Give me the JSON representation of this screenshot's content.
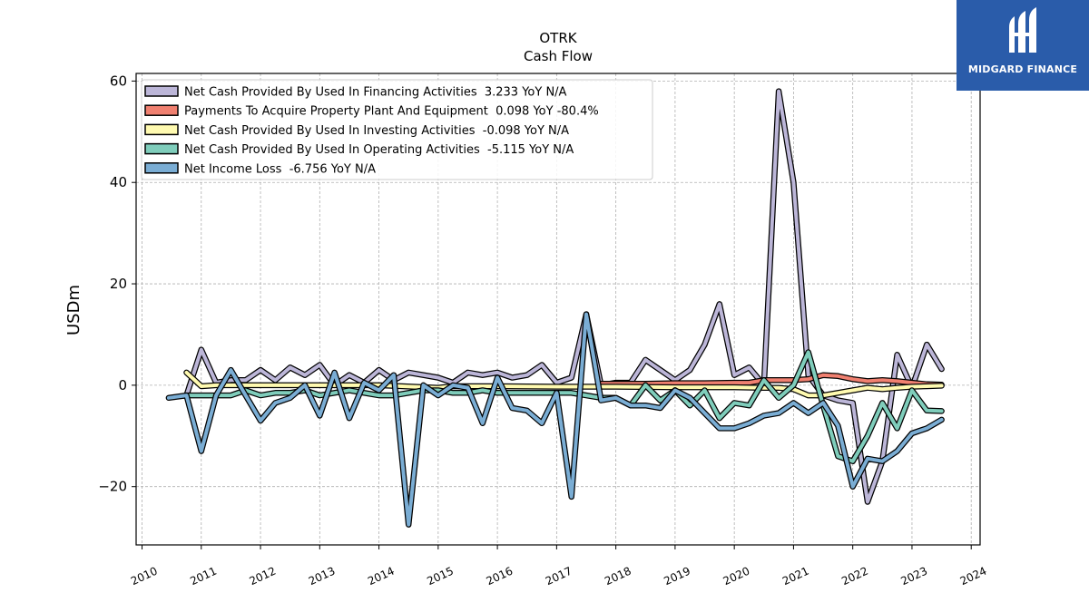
{
  "brand": {
    "name": "MIDGARD FINANCE",
    "color": "#2a5caa"
  },
  "chart_data": {
    "type": "line",
    "title": "OTRK",
    "subtitle": "Cash Flow",
    "xlabel": "",
    "ylabel": "USDm",
    "xlim": [
      2009.9,
      2024.15
    ],
    "ylim": [
      -31.5,
      61.5
    ],
    "x_ticks": [
      "2010",
      "2011",
      "2012",
      "2013",
      "2014",
      "2015",
      "2016",
      "2017",
      "2018",
      "2019",
      "2020",
      "2021",
      "2022",
      "2023",
      "2024"
    ],
    "y_ticks": [
      -20,
      0,
      20,
      40,
      60
    ],
    "grid": true,
    "legend_position": "top-left",
    "series": [
      {
        "name": "Net Cash Provided By Used In Financing Activities  3.233 YoY N/A",
        "color": "#bcb6d8",
        "points": [
          [
            2010.75,
            -2
          ],
          [
            2011.0,
            7
          ],
          [
            2011.25,
            0.5
          ],
          [
            2011.5,
            1
          ],
          [
            2011.75,
            1
          ],
          [
            2012.0,
            3
          ],
          [
            2012.25,
            1
          ],
          [
            2012.5,
            3.5
          ],
          [
            2012.75,
            2
          ],
          [
            2013.0,
            4
          ],
          [
            2013.25,
            0
          ],
          [
            2013.5,
            2
          ],
          [
            2013.75,
            0.5
          ],
          [
            2014.0,
            3
          ],
          [
            2014.25,
            1
          ],
          [
            2014.5,
            2.5
          ],
          [
            2014.75,
            2
          ],
          [
            2015.0,
            1.5
          ],
          [
            2015.25,
            0.5
          ],
          [
            2015.5,
            2.5
          ],
          [
            2015.75,
            2
          ],
          [
            2016.0,
            2.5
          ],
          [
            2016.25,
            1.5
          ],
          [
            2016.5,
            2
          ],
          [
            2016.75,
            4
          ],
          [
            2017.0,
            0.5
          ],
          [
            2017.25,
            1.5
          ],
          [
            2017.5,
            14
          ],
          [
            2017.75,
            0
          ],
          [
            2018.0,
            0.5
          ],
          [
            2018.25,
            0.5
          ],
          [
            2018.5,
            5
          ],
          [
            2018.75,
            3
          ],
          [
            2019.0,
            1
          ],
          [
            2019.25,
            3
          ],
          [
            2019.5,
            8
          ],
          [
            2019.75,
            16
          ],
          [
            2020.0,
            2
          ],
          [
            2020.25,
            3.5
          ],
          [
            2020.5,
            0
          ],
          [
            2020.75,
            58
          ],
          [
            2021.0,
            40
          ],
          [
            2021.25,
            2
          ],
          [
            2021.5,
            -2
          ],
          [
            2021.75,
            -3
          ],
          [
            2022.0,
            -3.5
          ],
          [
            2022.25,
            -23
          ],
          [
            2022.5,
            -15
          ],
          [
            2022.75,
            6
          ],
          [
            2023.0,
            -0.5
          ],
          [
            2023.25,
            8
          ],
          [
            2023.5,
            3.2
          ]
        ]
      },
      {
        "name": "Payments To Acquire Property Plant And Equipment  0.098 YoY -80.4%",
        "color": "#f08070",
        "points": [
          [
            2017.75,
            0.3
          ],
          [
            2018.0,
            0.3
          ],
          [
            2018.5,
            0.3
          ],
          [
            2019.0,
            0.4
          ],
          [
            2019.5,
            0.4
          ],
          [
            2020.0,
            0.5
          ],
          [
            2020.25,
            0.5
          ],
          [
            2020.5,
            1
          ],
          [
            2020.75,
            1
          ],
          [
            2021.0,
            1
          ],
          [
            2021.25,
            1.2
          ],
          [
            2021.5,
            2
          ],
          [
            2021.75,
            1.8
          ],
          [
            2022.0,
            1.2
          ],
          [
            2022.25,
            0.8
          ],
          [
            2022.5,
            1
          ],
          [
            2022.75,
            0.8
          ],
          [
            2023.0,
            0.5
          ],
          [
            2023.25,
            0.2
          ],
          [
            2023.5,
            0.1
          ]
        ]
      },
      {
        "name": "Net Cash Provided By Used In Investing Activities  -0.098 YoY N/A",
        "color": "#fffab0",
        "points": [
          [
            2010.75,
            2.5
          ],
          [
            2011.0,
            -0.2
          ],
          [
            2011.25,
            0
          ],
          [
            2011.5,
            0
          ],
          [
            2011.75,
            0
          ],
          [
            2012.0,
            0
          ],
          [
            2013.0,
            0
          ],
          [
            2014.0,
            0
          ],
          [
            2015.0,
            -0.5
          ],
          [
            2015.25,
            -0.2
          ],
          [
            2016.0,
            -0.2
          ],
          [
            2017.0,
            -0.3
          ],
          [
            2017.5,
            -0.3
          ],
          [
            2018.0,
            -0.3
          ],
          [
            2019.0,
            -0.4
          ],
          [
            2019.5,
            -0.4
          ],
          [
            2020.0,
            -0.4
          ],
          [
            2020.5,
            -0.5
          ],
          [
            2020.75,
            -0.5
          ],
          [
            2021.0,
            -0.8
          ],
          [
            2021.25,
            -2
          ],
          [
            2021.5,
            -2
          ],
          [
            2021.75,
            -1.5
          ],
          [
            2022.0,
            -1
          ],
          [
            2022.25,
            -0.5
          ],
          [
            2022.5,
            -0.8
          ],
          [
            2022.75,
            -0.5
          ],
          [
            2023.0,
            -0.3
          ],
          [
            2023.25,
            -0.2
          ],
          [
            2023.5,
            -0.1
          ]
        ]
      },
      {
        "name": "Net Cash Provided By Used In Operating Activities  -5.115 YoY N/A",
        "color": "#7fcdbb",
        "points": [
          [
            2010.75,
            -2
          ],
          [
            2011.0,
            -2
          ],
          [
            2011.25,
            -2
          ],
          [
            2011.5,
            -2
          ],
          [
            2011.75,
            -1
          ],
          [
            2012.0,
            -2
          ],
          [
            2012.25,
            -1.5
          ],
          [
            2012.5,
            -1.5
          ],
          [
            2012.75,
            -1
          ],
          [
            2013.0,
            -2
          ],
          [
            2013.25,
            -1.5
          ],
          [
            2013.5,
            -1
          ],
          [
            2013.75,
            -1.5
          ],
          [
            2014.0,
            -2
          ],
          [
            2014.25,
            -2
          ],
          [
            2014.5,
            -1.5
          ],
          [
            2014.75,
            -1
          ],
          [
            2015.0,
            -1
          ],
          [
            2015.25,
            -1.5
          ],
          [
            2015.5,
            -1.5
          ],
          [
            2015.75,
            -1
          ],
          [
            2016.0,
            -1.5
          ],
          [
            2016.25,
            -1.5
          ],
          [
            2016.5,
            -1.5
          ],
          [
            2016.75,
            -1.5
          ],
          [
            2017.0,
            -1.5
          ],
          [
            2017.25,
            -1.5
          ],
          [
            2017.5,
            -2
          ],
          [
            2017.75,
            -2.5
          ],
          [
            2018.0,
            -2.5
          ],
          [
            2018.25,
            -4
          ],
          [
            2018.5,
            0
          ],
          [
            2018.75,
            -3
          ],
          [
            2019.0,
            -1
          ],
          [
            2019.25,
            -4
          ],
          [
            2019.5,
            -1
          ],
          [
            2019.75,
            -6.5
          ],
          [
            2020.0,
            -3.5
          ],
          [
            2020.25,
            -4
          ],
          [
            2020.5,
            1
          ],
          [
            2020.75,
            -2.5
          ],
          [
            2021.0,
            0
          ],
          [
            2021.25,
            6.5
          ],
          [
            2021.5,
            -4
          ],
          [
            2021.75,
            -14
          ],
          [
            2022.0,
            -15
          ],
          [
            2022.25,
            -10
          ],
          [
            2022.5,
            -3.5
          ],
          [
            2022.75,
            -8.5
          ],
          [
            2023.0,
            -1
          ],
          [
            2023.25,
            -5
          ],
          [
            2023.5,
            -5.1
          ]
        ]
      },
      {
        "name": "Net Income Loss  -6.756 YoY N/A",
        "color": "#7aadd4",
        "points": [
          [
            2010.45,
            -2.5
          ],
          [
            2010.75,
            -2
          ],
          [
            2011.0,
            -13
          ],
          [
            2011.25,
            -2
          ],
          [
            2011.5,
            3
          ],
          [
            2011.75,
            -2
          ],
          [
            2012.0,
            -7
          ],
          [
            2012.25,
            -3.5
          ],
          [
            2012.5,
            -2.5
          ],
          [
            2012.75,
            0
          ],
          [
            2013.0,
            -6
          ],
          [
            2013.25,
            2.5
          ],
          [
            2013.5,
            -6.5
          ],
          [
            2013.75,
            0.5
          ],
          [
            2014.0,
            -1
          ],
          [
            2014.25,
            2
          ],
          [
            2014.5,
            -27.5
          ],
          [
            2014.75,
            0
          ],
          [
            2015.0,
            -2
          ],
          [
            2015.25,
            0
          ],
          [
            2015.5,
            -0.5
          ],
          [
            2015.75,
            -7.5
          ],
          [
            2016.0,
            1.5
          ],
          [
            2016.25,
            -4.5
          ],
          [
            2016.5,
            -5
          ],
          [
            2016.75,
            -7.5
          ],
          [
            2017.0,
            -1.5
          ],
          [
            2017.25,
            -22
          ],
          [
            2017.5,
            14
          ],
          [
            2017.75,
            -3
          ],
          [
            2018.0,
            -2.5
          ],
          [
            2018.25,
            -4
          ],
          [
            2018.5,
            -4
          ],
          [
            2018.75,
            -4.5
          ],
          [
            2019.0,
            -1
          ],
          [
            2019.25,
            -2.5
          ],
          [
            2019.5,
            -5.5
          ],
          [
            2019.75,
            -8.5
          ],
          [
            2020.0,
            -8.5
          ],
          [
            2020.25,
            -7.5
          ],
          [
            2020.5,
            -6
          ],
          [
            2020.75,
            -5.5
          ],
          [
            2021.0,
            -3.5
          ],
          [
            2021.25,
            -5.5
          ],
          [
            2021.5,
            -3.5
          ],
          [
            2021.75,
            -8
          ],
          [
            2022.0,
            -20
          ],
          [
            2022.25,
            -14.5
          ],
          [
            2022.5,
            -15
          ],
          [
            2022.75,
            -13
          ],
          [
            2023.0,
            -9.5
          ],
          [
            2023.25,
            -8.5
          ],
          [
            2023.5,
            -6.8
          ]
        ]
      }
    ]
  }
}
